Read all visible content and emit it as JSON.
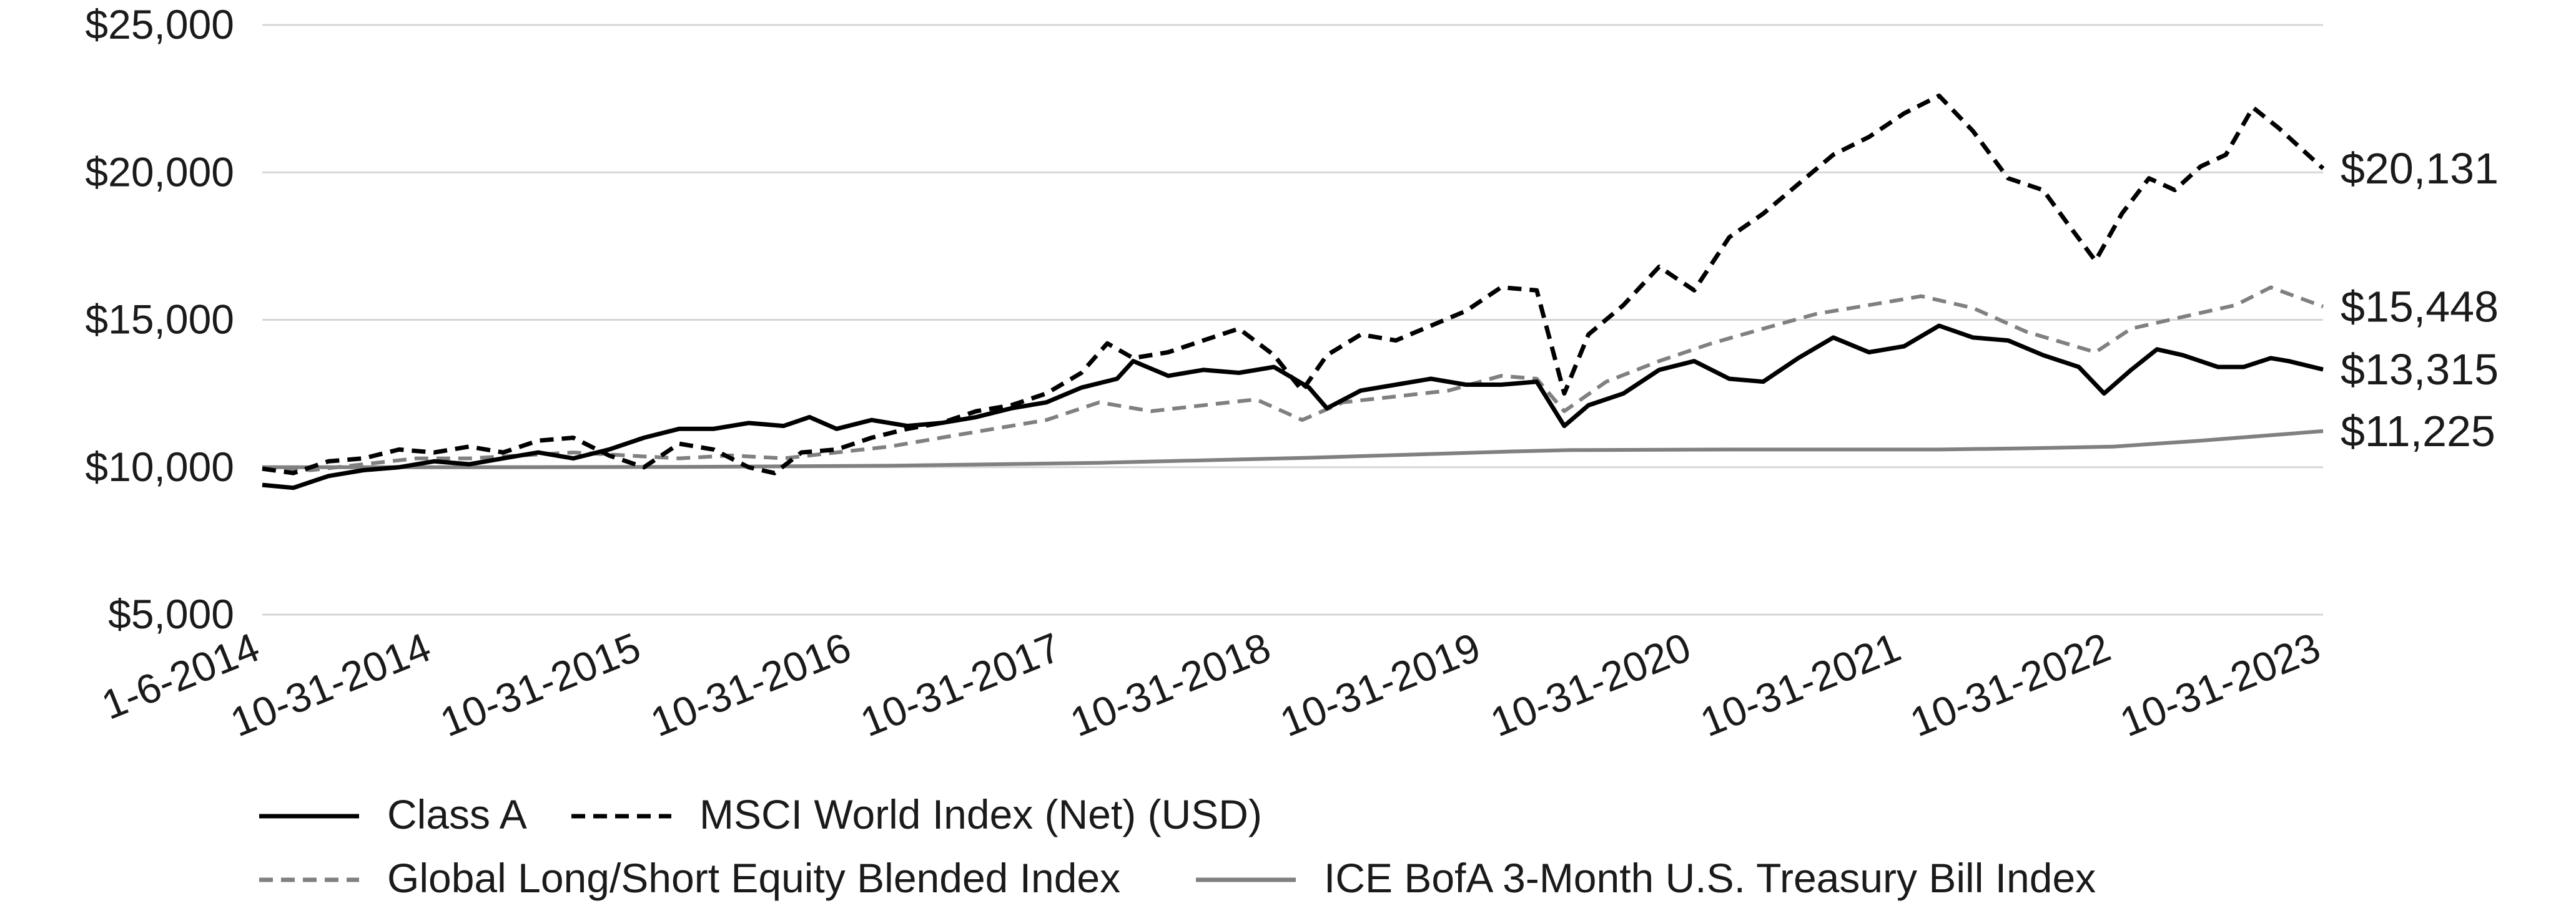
{
  "chart_data": {
    "type": "line",
    "title": "",
    "xlabel": "",
    "ylabel": "",
    "ylim": [
      5000,
      25000
    ],
    "yticks": [
      5000,
      10000,
      15000,
      20000,
      25000
    ],
    "ytick_labels": [
      "$5,000",
      "$10,000",
      "$15,000",
      "$20,000",
      "$25,000"
    ],
    "x_range": [
      "2014-01-06",
      "2023-10-31"
    ],
    "x_ticks": [
      "2014-01-06",
      "2014-10-31",
      "2015-10-31",
      "2016-10-31",
      "2017-10-31",
      "2018-10-31",
      "2019-10-31",
      "2020-10-31",
      "2021-10-31",
      "2022-10-31",
      "2023-10-31"
    ],
    "x_tick_labels": [
      "1-6-2014",
      "10-31-2014",
      "10-31-2015",
      "10-31-2016",
      "10-31-2017",
      "10-31-2018",
      "10-31-2019",
      "10-31-2020",
      "10-31-2021",
      "10-31-2022",
      "10-31-2023"
    ],
    "grid": "horizontal",
    "legend_position": "bottom",
    "series": [
      {
        "name": "Class A",
        "color": "#000000",
        "style": "solid",
        "end_label": "$13,315",
        "points": [
          [
            "2014-01-06",
            9400
          ],
          [
            "2014-03-01",
            9300
          ],
          [
            "2014-05-01",
            9700
          ],
          [
            "2014-07-01",
            9900
          ],
          [
            "2014-09-01",
            10000
          ],
          [
            "2014-11-01",
            10200
          ],
          [
            "2015-01-01",
            10100
          ],
          [
            "2015-03-01",
            10300
          ],
          [
            "2015-05-01",
            10500
          ],
          [
            "2015-07-01",
            10300
          ],
          [
            "2015-09-01",
            10600
          ],
          [
            "2015-11-01",
            11000
          ],
          [
            "2016-01-01",
            11300
          ],
          [
            "2016-03-01",
            11300
          ],
          [
            "2016-05-01",
            11500
          ],
          [
            "2016-07-01",
            11400
          ],
          [
            "2016-08-15",
            11700
          ],
          [
            "2016-10-01",
            11300
          ],
          [
            "2016-12-01",
            11600
          ],
          [
            "2017-02-01",
            11400
          ],
          [
            "2017-04-01",
            11500
          ],
          [
            "2017-06-01",
            11700
          ],
          [
            "2017-08-01",
            12000
          ],
          [
            "2017-10-01",
            12200
          ],
          [
            "2017-12-01",
            12700
          ],
          [
            "2018-02-01",
            13000
          ],
          [
            "2018-03-01",
            13600
          ],
          [
            "2018-05-01",
            13100
          ],
          [
            "2018-07-01",
            13300
          ],
          [
            "2018-09-01",
            13200
          ],
          [
            "2018-11-01",
            13400
          ],
          [
            "2019-01-01",
            12700
          ],
          [
            "2019-02-01",
            12000
          ],
          [
            "2019-04-01",
            12600
          ],
          [
            "2019-06-01",
            12800
          ],
          [
            "2019-08-01",
            13000
          ],
          [
            "2019-10-01",
            12800
          ],
          [
            "2019-12-01",
            12800
          ],
          [
            "2020-02-01",
            12900
          ],
          [
            "2020-03-20",
            11400
          ],
          [
            "2020-05-01",
            12100
          ],
          [
            "2020-07-01",
            12500
          ],
          [
            "2020-09-01",
            13300
          ],
          [
            "2020-11-01",
            13600
          ],
          [
            "2021-01-01",
            13000
          ],
          [
            "2021-03-01",
            12900
          ],
          [
            "2021-05-01",
            13700
          ],
          [
            "2021-07-01",
            14400
          ],
          [
            "2021-09-01",
            13900
          ],
          [
            "2021-11-01",
            14100
          ],
          [
            "2022-01-01",
            14800
          ],
          [
            "2022-03-01",
            14400
          ],
          [
            "2022-05-01",
            14300
          ],
          [
            "2022-07-01",
            13800
          ],
          [
            "2022-09-01",
            13400
          ],
          [
            "2022-10-15",
            12500
          ],
          [
            "2022-12-01",
            13300
          ],
          [
            "2023-01-15",
            14000
          ],
          [
            "2023-03-01",
            13800
          ],
          [
            "2023-05-01",
            13400
          ],
          [
            "2023-06-15",
            13400
          ],
          [
            "2023-08-01",
            13700
          ],
          [
            "2023-09-01",
            13600
          ],
          [
            "2023-10-31",
            13315
          ]
        ]
      },
      {
        "name": "MSCI World Index (Net) (USD)",
        "color": "#000000",
        "style": "dashed",
        "end_label": "$20,131",
        "points": [
          [
            "2014-01-06",
            9950
          ],
          [
            "2014-03-01",
            9800
          ],
          [
            "2014-05-01",
            10200
          ],
          [
            "2014-07-01",
            10300
          ],
          [
            "2014-09-01",
            10600
          ],
          [
            "2014-11-01",
            10500
          ],
          [
            "2015-01-01",
            10700
          ],
          [
            "2015-03-01",
            10500
          ],
          [
            "2015-05-01",
            10900
          ],
          [
            "2015-07-01",
            11000
          ],
          [
            "2015-09-01",
            10400
          ],
          [
            "2015-11-01",
            10000
          ],
          [
            "2016-01-01",
            10800
          ],
          [
            "2016-03-01",
            10600
          ],
          [
            "2016-05-01",
            10000
          ],
          [
            "2016-06-15",
            9800
          ],
          [
            "2016-08-01",
            10500
          ],
          [
            "2016-10-01",
            10600
          ],
          [
            "2016-12-01",
            11000
          ],
          [
            "2017-02-01",
            11300
          ],
          [
            "2017-04-01",
            11500
          ],
          [
            "2017-06-01",
            11900
          ],
          [
            "2017-08-01",
            12100
          ],
          [
            "2017-10-01",
            12500
          ],
          [
            "2017-12-01",
            13200
          ],
          [
            "2018-01-15",
            14200
          ],
          [
            "2018-03-01",
            13700
          ],
          [
            "2018-05-01",
            13900
          ],
          [
            "2018-07-01",
            14300
          ],
          [
            "2018-09-01",
            14700
          ],
          [
            "2018-11-01",
            13800
          ],
          [
            "2018-12-20",
            12600
          ],
          [
            "2019-02-01",
            13800
          ],
          [
            "2019-04-01",
            14500
          ],
          [
            "2019-06-01",
            14300
          ],
          [
            "2019-08-01",
            14800
          ],
          [
            "2019-10-01",
            15300
          ],
          [
            "2019-12-01",
            16100
          ],
          [
            "2020-02-01",
            16000
          ],
          [
            "2020-03-20",
            12500
          ],
          [
            "2020-05-01",
            14500
          ],
          [
            "2020-07-01",
            15500
          ],
          [
            "2020-09-01",
            16800
          ],
          [
            "2020-11-01",
            16000
          ],
          [
            "2021-01-01",
            17800
          ],
          [
            "2021-03-01",
            18600
          ],
          [
            "2021-05-01",
            19600
          ],
          [
            "2021-07-01",
            20600
          ],
          [
            "2021-09-01",
            21200
          ],
          [
            "2021-11-01",
            22000
          ],
          [
            "2022-01-01",
            22600
          ],
          [
            "2022-03-01",
            21400
          ],
          [
            "2022-05-01",
            19800
          ],
          [
            "2022-07-01",
            19400
          ],
          [
            "2022-08-15",
            18200
          ],
          [
            "2022-09-30",
            17000
          ],
          [
            "2022-11-15",
            18600
          ],
          [
            "2023-01-01",
            19800
          ],
          [
            "2023-02-15",
            19400
          ],
          [
            "2023-04-01",
            20200
          ],
          [
            "2023-05-15",
            20600
          ],
          [
            "2023-07-01",
            22200
          ],
          [
            "2023-08-15",
            21500
          ],
          [
            "2023-10-31",
            20131
          ]
        ]
      },
      {
        "name": "Global Long/Short Equity Blended Index",
        "color": "#808080",
        "style": "dashed",
        "end_label": "$15,448",
        "points": [
          [
            "2014-01-06",
            10000
          ],
          [
            "2014-04-01",
            9900
          ],
          [
            "2014-07-01",
            10100
          ],
          [
            "2014-10-01",
            10300
          ],
          [
            "2015-01-01",
            10300
          ],
          [
            "2015-04-01",
            10400
          ],
          [
            "2015-07-01",
            10500
          ],
          [
            "2015-10-01",
            10400
          ],
          [
            "2016-01-01",
            10300
          ],
          [
            "2016-04-01",
            10400
          ],
          [
            "2016-07-01",
            10300
          ],
          [
            "2016-10-01",
            10500
          ],
          [
            "2017-01-01",
            10700
          ],
          [
            "2017-04-01",
            11000
          ],
          [
            "2017-07-01",
            11300
          ],
          [
            "2017-10-01",
            11600
          ],
          [
            "2018-01-01",
            12200
          ],
          [
            "2018-04-01",
            11900
          ],
          [
            "2018-07-01",
            12100
          ],
          [
            "2018-10-01",
            12300
          ],
          [
            "2018-12-20",
            11600
          ],
          [
            "2019-03-01",
            12200
          ],
          [
            "2019-06-01",
            12400
          ],
          [
            "2019-09-01",
            12600
          ],
          [
            "2019-12-01",
            13100
          ],
          [
            "2020-02-01",
            13000
          ],
          [
            "2020-03-20",
            11900
          ],
          [
            "2020-06-01",
            12900
          ],
          [
            "2020-09-01",
            13600
          ],
          [
            "2020-12-01",
            14200
          ],
          [
            "2021-03-01",
            14700
          ],
          [
            "2021-06-01",
            15200
          ],
          [
            "2021-09-01",
            15500
          ],
          [
            "2021-12-01",
            15800
          ],
          [
            "2022-03-01",
            15400
          ],
          [
            "2022-06-01",
            14600
          ],
          [
            "2022-09-30",
            13900
          ],
          [
            "2022-12-01",
            14700
          ],
          [
            "2023-03-01",
            15100
          ],
          [
            "2023-06-01",
            15500
          ],
          [
            "2023-08-01",
            16100
          ],
          [
            "2023-10-31",
            15448
          ]
        ]
      },
      {
        "name": "ICE BofA 3-Month U.S. Treasury Bill Index",
        "color": "#808080",
        "style": "solid",
        "end_label": "$11,225",
        "points": [
          [
            "2014-01-06",
            10000
          ],
          [
            "2015-01-01",
            10000
          ],
          [
            "2016-01-01",
            10010
          ],
          [
            "2017-01-01",
            10050
          ],
          [
            "2018-01-01",
            10150
          ],
          [
            "2019-01-01",
            10320
          ],
          [
            "2020-01-01",
            10540
          ],
          [
            "2020-04-01",
            10580
          ],
          [
            "2021-01-01",
            10600
          ],
          [
            "2022-01-01",
            10600
          ],
          [
            "2022-06-01",
            10640
          ],
          [
            "2022-10-31",
            10700
          ],
          [
            "2023-04-01",
            10900
          ],
          [
            "2023-10-31",
            11225
          ]
        ]
      }
    ]
  }
}
